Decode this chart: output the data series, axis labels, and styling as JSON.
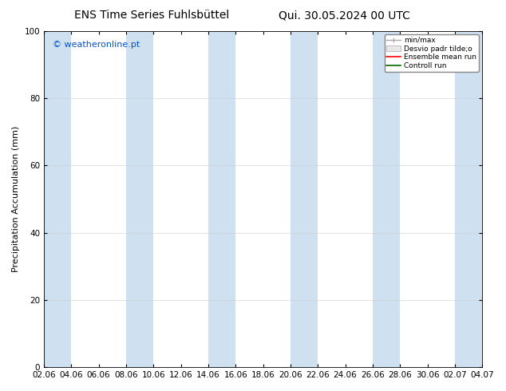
{
  "title_left": "ENS Time Series Fuhlsbüttel",
  "title_right": "Qui. 30.05.2024 00 UTC",
  "ylabel": "Precipitation Accumulation (mm)",
  "watermark": "© weatheronline.pt",
  "watermark_color": "#0055cc",
  "ylim": [
    0,
    100
  ],
  "yticks": [
    0,
    20,
    40,
    60,
    80,
    100
  ],
  "x_tick_labels": [
    "02.06",
    "04.06",
    "06.06",
    "08.06",
    "10.06",
    "12.06",
    "14.06",
    "16.06",
    "18.06",
    "20.06",
    "22.06",
    "24.06",
    "26.06",
    "28.06",
    "30.06",
    "02.07",
    "04.07"
  ],
  "background_color": "#ffffff",
  "plot_bg_color": "#ffffff",
  "shade_color": "#cfe0f0",
  "legend_labels": [
    "min/max",
    "Desvio padr tilde;o",
    "Ensemble mean run",
    "Controll run"
  ],
  "title_fontsize": 10,
  "label_fontsize": 8,
  "tick_fontsize": 7.5
}
